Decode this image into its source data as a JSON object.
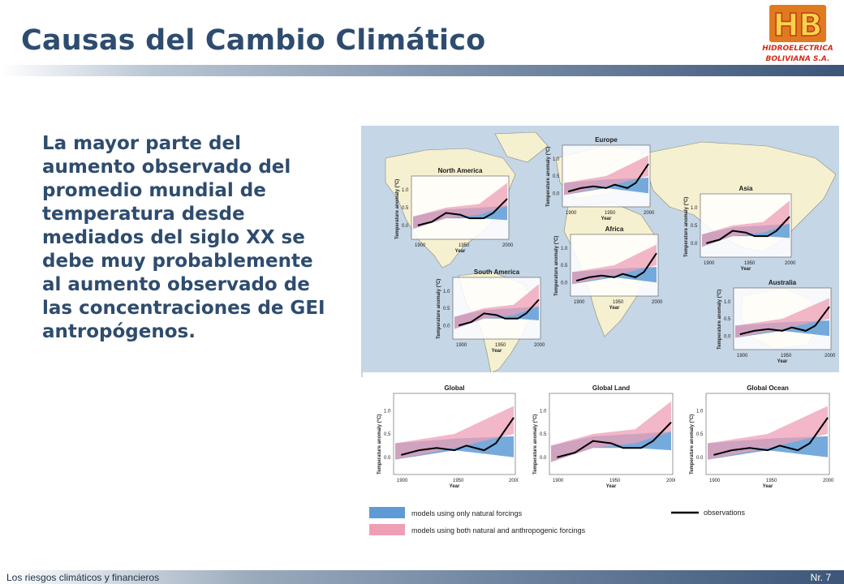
{
  "slide": {
    "title": "Causas del Cambio Climático",
    "body_lines": [
      "La mayor parte del",
      "aumento observado del",
      "promedio mundial de",
      "temperatura desde",
      "mediados del siglo XX se",
      "debe muy probablemente",
      "al aumento observado de",
      "las concentraciones de GEI",
      "antropógenos."
    ]
  },
  "logo": {
    "letters": "HB",
    "line1": "HIDROELECTRICA",
    "line2": "BOLIVIANA S.A."
  },
  "figure": {
    "panels": [
      {
        "name": "North America"
      },
      {
        "name": "Europe"
      },
      {
        "name": "Asia"
      },
      {
        "name": "Africa"
      },
      {
        "name": "South America"
      },
      {
        "name": "Australia"
      },
      {
        "name": "Global"
      },
      {
        "name": "Global Land"
      },
      {
        "name": "Global Ocean"
      }
    ],
    "axis": {
      "ylabel": "Temperature anomaly (°C)",
      "xlabel": "Year",
      "x_ticks": [
        "1900",
        "1950",
        "2000"
      ],
      "y_ticks": [
        "0.0",
        "0.5",
        "1.0"
      ]
    },
    "legend": {
      "natural": "models using only natural forcings",
      "both": "models using both natural and anthropogenic forcings",
      "observations": "observations"
    },
    "colors": {
      "ocean": "#c5d6e6",
      "land": "#f5f0d0",
      "natural_band": "#5e9bd6",
      "anthropogenic_band": "#ee9fb5",
      "observations": "#000000"
    }
  },
  "footer": {
    "left": "Los riesgos climáticos y financieros",
    "right": "Nr. 7"
  }
}
